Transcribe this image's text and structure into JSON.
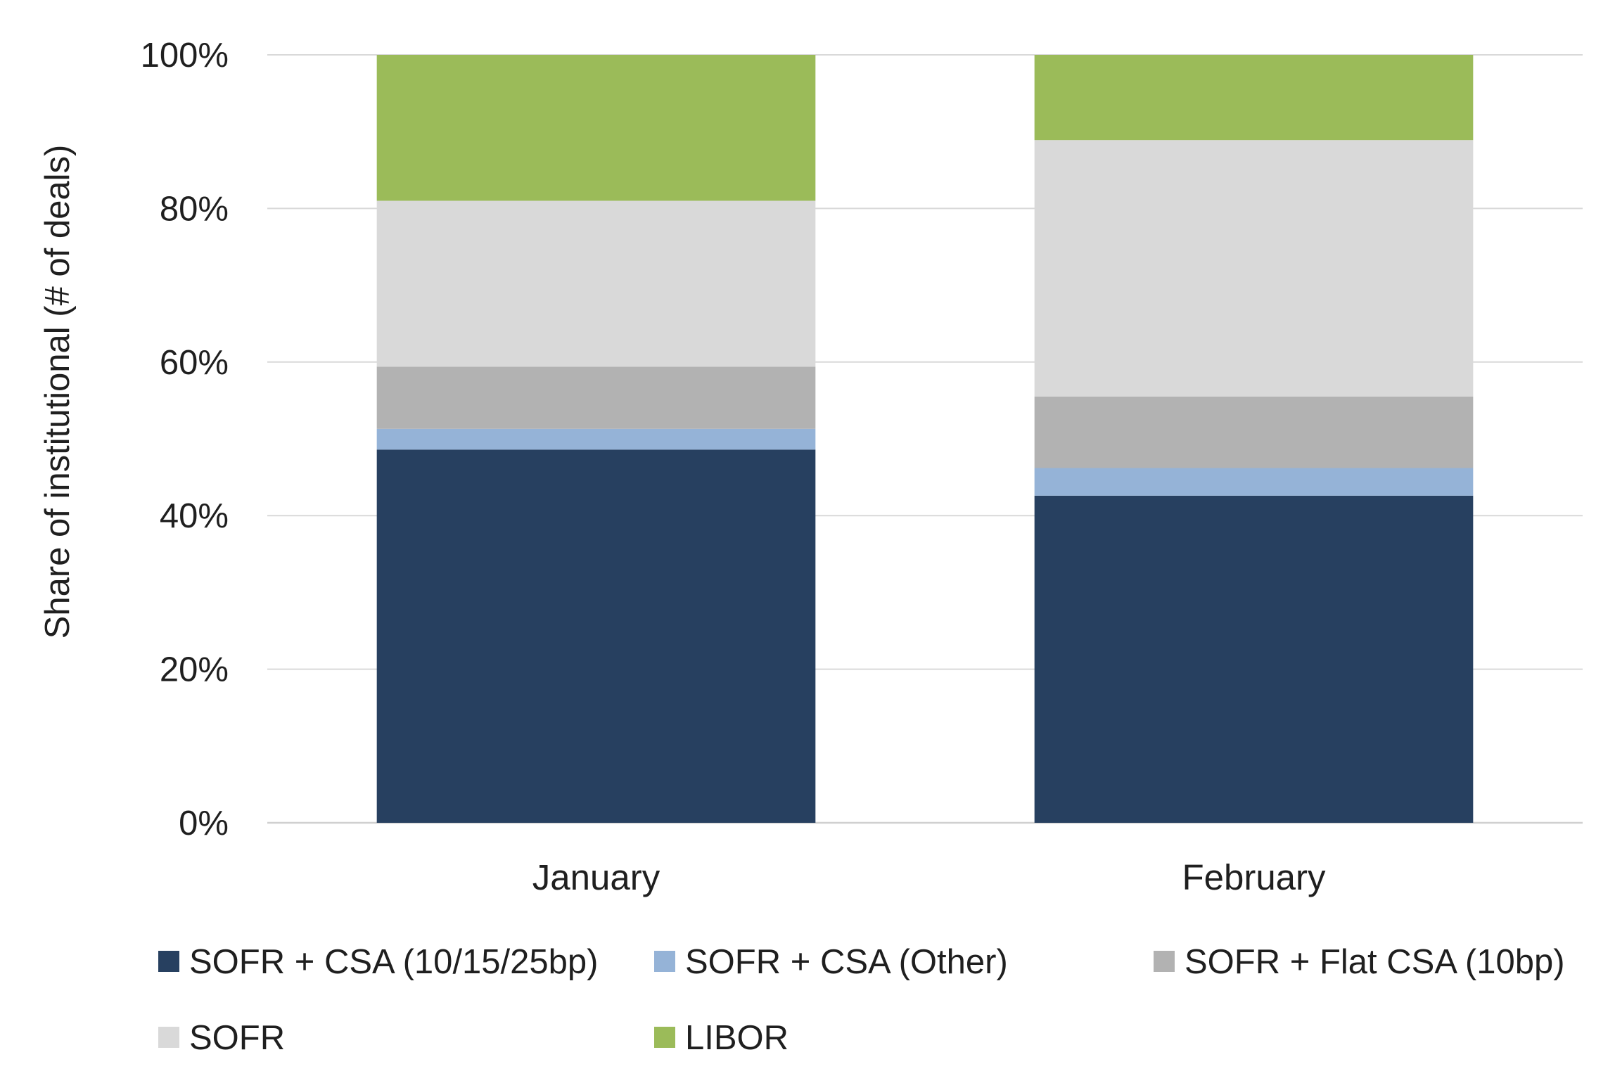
{
  "chart_data": {
    "type": "bar",
    "stacked": true,
    "title": "",
    "xlabel": "",
    "ylabel": "Share of institutional (# of deals)",
    "ylim": [
      0,
      100
    ],
    "yticks": [
      "0%",
      "20%",
      "40%",
      "60%",
      "80%",
      "100%"
    ],
    "y_tick_values": [
      0,
      20,
      40,
      60,
      80,
      100
    ],
    "grid": true,
    "legend_position": "bottom",
    "categories": [
      "January",
      "February"
    ],
    "series": [
      {
        "name": "SOFR + CSA (10/15/25bp)",
        "color": "#274060",
        "values": [
          48.6,
          42.6
        ]
      },
      {
        "name": "SOFR + CSA (Other)",
        "color": "#95b3d7",
        "values": [
          2.7,
          3.6
        ]
      },
      {
        "name": "SOFR + Flat CSA (10bp)",
        "color": "#b2b2b2",
        "values": [
          8.1,
          9.3
        ]
      },
      {
        "name": "SOFR",
        "color": "#d9d9d9",
        "values": [
          21.6,
          33.4
        ]
      },
      {
        "name": "LIBOR",
        "color": "#9bbb59",
        "values": [
          19.0,
          11.1
        ]
      }
    ]
  }
}
